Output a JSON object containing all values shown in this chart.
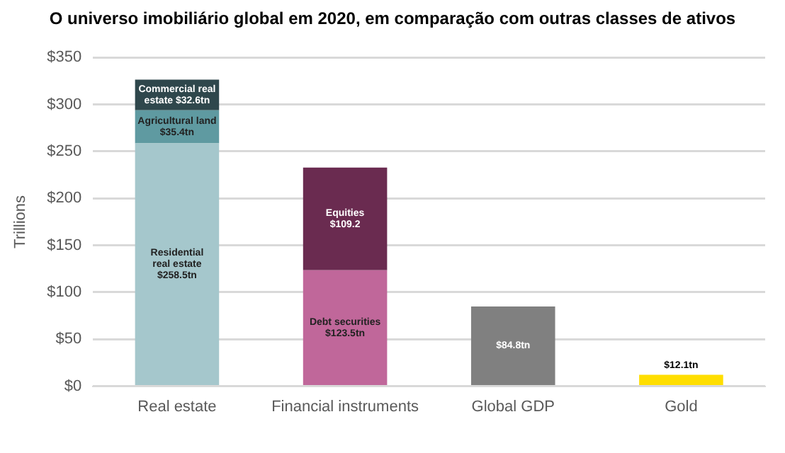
{
  "chart_data": {
    "type": "bar",
    "stacked": true,
    "title": "O universo imobiliário global em 2020, em comparação com outras classes de ativos",
    "ylabel": "Trillions",
    "categories": [
      "Real estate",
      "Financial instruments",
      "Global GDP",
      "Gold"
    ],
    "series": [
      {
        "colors": [
          "#a5c7cc",
          "#c0679a",
          "#808080",
          "#ffde00"
        ],
        "values": [
          258.5,
          123.5,
          84.8,
          12.1
        ],
        "value_labels": [
          "Residential\nreal estate\n$258.5tn",
          "Debt securities\n$123.5tn",
          "$84.8tn",
          "$12.1tn"
        ]
      },
      {
        "colors": [
          "#5f9aa1",
          "#6a2b50",
          null,
          null
        ],
        "values": [
          35.4,
          109.2,
          null,
          null
        ],
        "value_labels": [
          "Agricultural land\n$35.4tn",
          "Equities\n$109.2",
          null,
          null
        ]
      },
      {
        "colors": [
          "#2f474c",
          null,
          null,
          null
        ],
        "values": [
          32.6,
          null,
          null,
          null
        ],
        "value_labels": [
          "Commercial real\nestate $32.6tn",
          null,
          null,
          null
        ]
      }
    ],
    "ylim": [
      0,
      350
    ],
    "yticks": [
      {
        "value": 0,
        "label": "$0"
      },
      {
        "value": 50,
        "label": "$50"
      },
      {
        "value": 100,
        "label": "$100"
      },
      {
        "value": 150,
        "label": "$150"
      },
      {
        "value": 200,
        "label": "$200"
      },
      {
        "value": 250,
        "label": "$250"
      },
      {
        "value": 300,
        "label": "$300"
      },
      {
        "value": 350,
        "label": "$350"
      }
    ],
    "grid": "y",
    "legend": false
  }
}
